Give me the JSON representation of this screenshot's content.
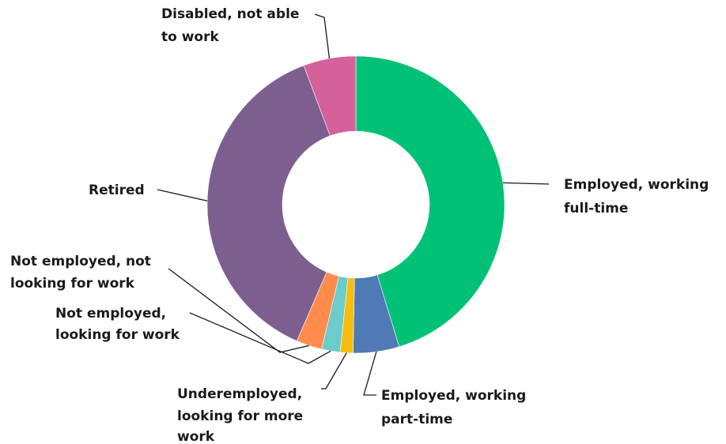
{
  "chart_data": {
    "type": "pie",
    "donut": true,
    "categories": [
      "Employed, working full-time",
      "Employed, working part-time",
      "Underemployed, looking for more work",
      "Not employed, looking for work",
      "Not employed, not looking for work",
      "Retired",
      "Disabled, not able to work"
    ],
    "values": [
      45.3,
      5.0,
      1.4,
      2.0,
      2.8,
      37.8,
      5.7
    ],
    "colors": [
      "#00c176",
      "#4f7ab5",
      "#f5bd0d",
      "#6ccbcb",
      "#ff8c4d",
      "#7d5f8f",
      "#d5619a"
    ],
    "labels": [
      {
        "lines": [
          "Employed, working",
          "full-time"
        ]
      },
      {
        "lines": [
          "Employed, working",
          "part-time"
        ]
      },
      {
        "lines": [
          "Underemployed,",
          "looking for more",
          "work"
        ]
      },
      {
        "lines": [
          "Not employed,",
          "looking for work"
        ]
      },
      {
        "lines": [
          "Not employed, not",
          "looking for work"
        ]
      },
      {
        "lines": [
          "Retired"
        ]
      },
      {
        "lines": [
          "Disabled, not able",
          "to work"
        ]
      }
    ]
  }
}
